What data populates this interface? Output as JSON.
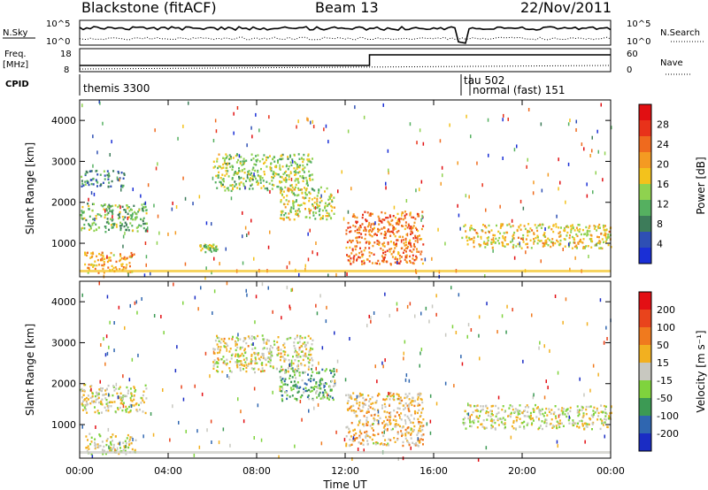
{
  "header": {
    "station": "Blackstone (fitACF)",
    "beam": "Beam 13",
    "date": "22/Nov/2011"
  },
  "params": {
    "nsky_label": "N.Sky",
    "nsky_ticks": [
      "10^5",
      "10^0"
    ],
    "nsearch_label": "N.Search",
    "nsearch_ticks": [
      "10^5",
      "10^0"
    ],
    "freq_label_1": "Freq.",
    "freq_label_2": "[MHz]",
    "freq_ticks": [
      "18",
      "8"
    ],
    "nave_label": "Nave",
    "nave_ticks": [
      "60",
      "0"
    ],
    "cpid_label": "CPID",
    "cpid_modes": [
      "themis 3300",
      "tau 502",
      "normal (fast) 151"
    ]
  },
  "axes": {
    "ylabel": "Slant Range [km]",
    "xlabel": "Time UT",
    "yticks": [
      "1000",
      "2000",
      "3000",
      "4000"
    ],
    "xticks": [
      "00:00",
      "04:00",
      "08:00",
      "12:00",
      "16:00",
      "20:00",
      "00:00"
    ]
  },
  "colorbars": {
    "power": {
      "label": "Power [dB]",
      "ticks": [
        "28",
        "24",
        "20",
        "16",
        "12",
        "8",
        "4"
      ],
      "colors": [
        "#1a2fd6",
        "#2e4fb4",
        "#3d7c5a",
        "#55b060",
        "#8fd24f",
        "#f3c21c",
        "#f49a22",
        "#ef6a1e",
        "#e8321a",
        "#e10f12"
      ]
    },
    "velocity": {
      "label": "Velocity [m s⁻¹]",
      "ticks": [
        "200",
        "100",
        "50",
        "15",
        "-15",
        "-50",
        "-100",
        "-200"
      ],
      "colors": [
        "#1a2cc4",
        "#2f66b0",
        "#3c9a54",
        "#7fd33d",
        "#c8c8c0",
        "#f2b020",
        "#f07a1e",
        "#e9441c",
        "#e30f14"
      ]
    }
  },
  "chart_data": [
    {
      "type": "heatmap",
      "title": "Power",
      "xlabel": "Time UT",
      "ylabel": "Slant Range [km]",
      "xlim": [
        0,
        24
      ],
      "ylim": [
        180,
        4500
      ],
      "colorbar_label": "Power [dB]",
      "colorbar_range": [
        0,
        32
      ],
      "echo_bands": [
        {
          "t": [
            0,
            1,
            2,
            3
          ],
          "range": [
            1300,
            2000
          ],
          "level_db": 12
        },
        {
          "t": [
            0,
            1,
            2
          ],
          "range": [
            2400,
            2800
          ],
          "level_db": 8
        },
        {
          "t": [
            0.2,
            2.5
          ],
          "range": [
            300,
            800
          ],
          "level_db": 20
        },
        {
          "t": [
            5.4,
            6.2
          ],
          "range": [
            800,
            1000
          ],
          "level_db": 14
        },
        {
          "t": [
            6.0,
            10.5
          ],
          "range": [
            2300,
            3200
          ],
          "level_db": 14
        },
        {
          "t": [
            9.0,
            11.5
          ],
          "range": [
            1600,
            2400
          ],
          "level_db": 16
        },
        {
          "t": [
            12.0,
            15.5
          ],
          "range": [
            500,
            1800
          ],
          "level_db": 24
        },
        {
          "t": [
            17.2,
            24
          ],
          "range": [
            900,
            1500
          ],
          "level_db": 18
        }
      ]
    },
    {
      "type": "heatmap",
      "title": "Velocity",
      "xlabel": "Time UT",
      "ylabel": "Slant Range [km]",
      "xlim": [
        0,
        24
      ],
      "ylim": [
        180,
        4500
      ],
      "colorbar_label": "Velocity [m s⁻¹]",
      "colorbar_range": [
        -200,
        200
      ],
      "echo_bands": [
        {
          "t": [
            0,
            3
          ],
          "range": [
            1300,
            2000
          ],
          "velocity": 0
        },
        {
          "t": [
            0.2,
            2.5
          ],
          "range": [
            300,
            800
          ],
          "velocity": 0
        },
        {
          "t": [
            6.0,
            10.5
          ],
          "range": [
            2300,
            3200
          ],
          "velocity": 10
        },
        {
          "t": [
            9.0,
            11.5
          ],
          "range": [
            1600,
            2400
          ],
          "velocity": -80
        },
        {
          "t": [
            12.0,
            15.5
          ],
          "range": [
            500,
            1800
          ],
          "velocity": 40
        },
        {
          "t": [
            17.2,
            24
          ],
          "range": [
            900,
            1500
          ],
          "velocity": 0
        }
      ]
    }
  ]
}
